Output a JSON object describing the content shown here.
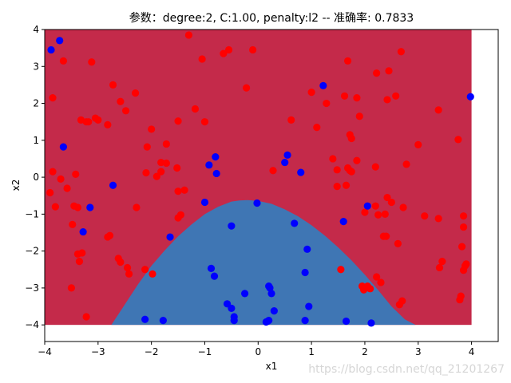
{
  "chart_data": {
    "type": "scatter",
    "title": "参数：degree:2, C:1.00, penalty:l2 -- 准确率: 0.7833",
    "xlabel": "x1",
    "ylabel": "x2",
    "xlim": [
      -4,
      4.5
    ],
    "ylim": [
      -4.45,
      4
    ],
    "xticks": [
      -4,
      -3,
      -2,
      -1,
      0,
      1,
      2,
      3,
      4
    ],
    "yticks": [
      -4,
      -3,
      -2,
      -1,
      0,
      1,
      2,
      3,
      4
    ],
    "grid": false,
    "region": {
      "x_range": [
        -4,
        4
      ],
      "y_range": [
        -4,
        4
      ],
      "positive_color": "#c42a4a",
      "negative_color": "#3f76b4",
      "boundary_curve": {
        "x": [
          -2.75,
          -2.5,
          -2.25,
          -2.0,
          -1.75,
          -1.5,
          -1.25,
          -1.0,
          -0.75,
          -0.5,
          -0.35,
          -0.2,
          0.0,
          0.25,
          0.5,
          0.75,
          1.0,
          1.25,
          1.5,
          1.75,
          2.0,
          2.25,
          2.5,
          2.75,
          2.95
        ],
        "y": [
          -4.0,
          -3.45,
          -2.9,
          -2.4,
          -1.98,
          -1.6,
          -1.28,
          -1.0,
          -0.8,
          -0.66,
          -0.63,
          -0.62,
          -0.64,
          -0.72,
          -0.87,
          -1.06,
          -1.3,
          -1.58,
          -1.9,
          -2.25,
          -2.64,
          -3.06,
          -3.5,
          -3.85,
          -4.0
        ]
      }
    },
    "series": [
      {
        "color": "#ff0000",
        "x": [
          -3.65,
          -3.85,
          -3.32,
          -3.12,
          -3.0,
          -3.22,
          -3.05,
          -3.18,
          -2.82,
          -2.58,
          -2.72,
          -2.48,
          -2.3,
          -2.08,
          -2.0,
          -1.72,
          -1.5,
          -1.82,
          -1.52,
          -1.5,
          -1.3,
          -1.18,
          -1.05,
          -1.0,
          -0.65,
          -0.55,
          -0.22,
          -0.1,
          0.28,
          0.62,
          1.0,
          1.1,
          1.28,
          1.4,
          1.48,
          1.62,
          1.68,
          1.72,
          1.75,
          1.85,
          1.9,
          2.2,
          2.22,
          2.42,
          2.45,
          2.58,
          2.68,
          3.0,
          3.38,
          3.75,
          3.85,
          3.9,
          3.88,
          3.8,
          3.85,
          3.78,
          -3.9,
          -3.85,
          -3.7,
          -3.58,
          -3.8,
          -3.48,
          -3.42,
          -3.38,
          -3.5,
          -3.35,
          -3.3,
          -3.22,
          -3.45,
          -3.38,
          -2.82,
          -2.78,
          -2.62,
          -2.58,
          -2.45,
          -2.42,
          -2.28,
          -2.1,
          -2.12,
          -1.98,
          -1.9,
          -1.82,
          -1.72,
          -1.5,
          -1.45,
          -1.38,
          1.48,
          1.65,
          1.68,
          1.72,
          1.75,
          1.85,
          2.0,
          2.2,
          2.25,
          2.38,
          2.42,
          2.5,
          2.72,
          2.78,
          3.12,
          3.38,
          3.4,
          3.45,
          3.82,
          3.85,
          2.22,
          2.4,
          2.7,
          2.65,
          2.62,
          2.1,
          2.05,
          2.3,
          1.55,
          1.95,
          1.98,
          2.35
        ],
        "y": [
          3.15,
          2.15,
          1.55,
          3.12,
          1.55,
          1.5,
          1.6,
          1.5,
          1.42,
          2.05,
          2.5,
          1.8,
          2.28,
          0.82,
          1.3,
          0.9,
          1.52,
          0.4,
          0.25,
          -0.38,
          3.85,
          1.85,
          3.2,
          1.5,
          3.35,
          3.45,
          2.42,
          3.45,
          0.18,
          1.55,
          2.3,
          1.35,
          2.0,
          0.5,
          0.2,
          2.2,
          3.15,
          1.15,
          1.05,
          2.15,
          1.65,
          0.28,
          2.82,
          2.1,
          2.88,
          2.2,
          3.4,
          0.88,
          1.82,
          1.02,
          -1.35,
          -2.35,
          -2.4,
          -3.22,
          -2.52,
          -3.32,
          -0.42,
          0.15,
          -0.05,
          -0.3,
          -0.8,
          -1.28,
          0.08,
          -2.08,
          -3.0,
          -2.28,
          -2.05,
          -3.78,
          -0.78,
          -0.82,
          -1.62,
          -1.58,
          -2.2,
          -2.3,
          -2.45,
          -2.62,
          -0.82,
          0.12,
          -2.5,
          -2.62,
          0.02,
          0.15,
          0.38,
          -1.1,
          -1.02,
          -0.35,
          -0.25,
          -0.22,
          0.25,
          0.18,
          0.15,
          0.45,
          -0.95,
          -0.78,
          -1.02,
          -1.0,
          -0.55,
          -0.68,
          -0.82,
          0.35,
          -1.05,
          -1.12,
          -2.45,
          -2.28,
          -1.88,
          -1.05,
          -2.7,
          -1.6,
          -3.35,
          -3.45,
          -1.8,
          -3.02,
          -2.95,
          -2.85,
          -2.5,
          -2.95,
          -3.05,
          -1.6
        ]
      },
      {
        "color": "#0000ff",
        "x": [
          -3.72,
          -3.88,
          -3.65,
          -2.72,
          -3.15,
          -3.28,
          -1.65,
          -1.0,
          -0.92,
          -0.8,
          -0.78,
          -0.5,
          -0.88,
          -0.82,
          -0.45,
          -0.45,
          -0.02,
          0.5,
          0.55,
          0.8,
          0.68,
          0.92,
          0.88,
          0.22,
          0.25,
          0.3,
          0.18,
          0.15,
          0.2,
          -0.25,
          -0.58,
          0.88,
          1.6,
          1.22,
          1.65,
          2.05,
          2.12,
          3.98,
          -1.78,
          -2.12,
          -0.5,
          0.2,
          0.95
        ],
        "y": [
          3.7,
          3.45,
          0.82,
          -0.22,
          -0.82,
          -1.48,
          -1.62,
          -0.68,
          0.33,
          0.55,
          0.1,
          -1.32,
          -2.47,
          -2.68,
          -3.78,
          -3.88,
          -0.7,
          0.4,
          0.6,
          0.13,
          -1.25,
          -1.95,
          -2.58,
          -3.0,
          -3.15,
          -3.62,
          -3.9,
          -3.92,
          -3.88,
          -3.15,
          -3.43,
          -3.88,
          -1.2,
          2.48,
          -3.9,
          -0.78,
          -3.95,
          2.18,
          -3.88,
          -3.85,
          -3.55,
          -2.95,
          -3.5
        ]
      }
    ]
  },
  "watermark": "https://blog.csdn.net/qq_21201267"
}
